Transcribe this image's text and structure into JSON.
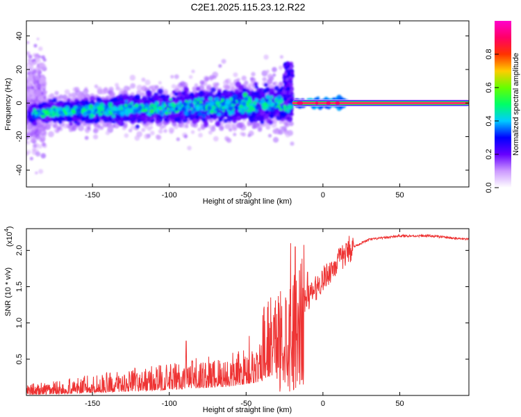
{
  "title": "C2E1.2025.115.23.12.R22",
  "chart_data": [
    {
      "type": "heatmap",
      "xlabel": "Height of straight line (km)",
      "ylabel": "Frequency (Hz)",
      "xlim": [
        -193,
        95
      ],
      "ylim": [
        -50,
        49
      ],
      "x_ticks": [
        -150,
        -100,
        -50,
        0,
        50
      ],
      "y_ticks": [
        -40,
        -20,
        0,
        20,
        40
      ],
      "colorbar": {
        "label": "Normalized spectral amplitude",
        "range": [
          0,
          1
        ],
        "ticks": [
          0.0,
          0.2,
          0.4,
          0.6,
          0.8
        ],
        "tick_labels": [
          "0.0",
          "0.2",
          "0.4",
          "0.6",
          "0.8"
        ],
        "colors": [
          "#ffffff",
          "#cc99ff",
          "#6600ff",
          "#0000ff",
          "#00ccff",
          "#00ff66",
          "#66ff00",
          "#ffcc00",
          "#ff3300",
          "#ff0066",
          "#ff00cc"
        ]
      },
      "band": {
        "noisy_x_range": [
          -193,
          -20
        ],
        "spike_x": [
          -25,
          -20
        ],
        "spike_top_hz": 24,
        "steady_x_range": [
          -20,
          95
        ],
        "steady_freq_hz": 0,
        "center_freq_start_hz": -6,
        "center_freq_end_hz": 0
      }
    },
    {
      "type": "line",
      "xlabel": "Height of straight line (km)",
      "ylabel": "SNR (10 * v/v)",
      "y_multiplier": "(x10^4)",
      "y_multiplier_base": "(x10",
      "y_multiplier_exp": "4",
      "xlim": [
        -193,
        95
      ],
      "ylim": [
        0,
        2.3
      ],
      "x_ticks": [
        -150,
        -100,
        -50,
        0,
        50
      ],
      "y_ticks": [
        0.5,
        1.0,
        1.5,
        2.0
      ],
      "y_tick_labels": [
        "0.5",
        "1.0",
        "1.5",
        "2.0"
      ],
      "series": [
        {
          "color": "#ee3333",
          "trend": [
            [
              -193,
              0.02
            ],
            [
              -150,
              0.1
            ],
            [
              -100,
              0.22
            ],
            [
              -60,
              0.35
            ],
            [
              -40,
              0.55
            ],
            [
              -30,
              0.9
            ],
            [
              -20,
              1.0
            ],
            [
              -15,
              1.2
            ],
            [
              0,
              1.6
            ],
            [
              10,
              1.85
            ],
            [
              20,
              2.05
            ],
            [
              30,
              2.15
            ],
            [
              50,
              2.2
            ],
            [
              70,
              2.2
            ],
            [
              95,
              2.15
            ]
          ],
          "spike_peaks": [
            [
              -89,
              0.75
            ],
            [
              -48,
              0.82
            ],
            [
              -35,
              1.0
            ],
            [
              -21,
              2.1
            ],
            [
              -18,
              2.05
            ],
            [
              -10,
              1.7
            ],
            [
              17,
              2.2
            ]
          ]
        }
      ]
    }
  ]
}
